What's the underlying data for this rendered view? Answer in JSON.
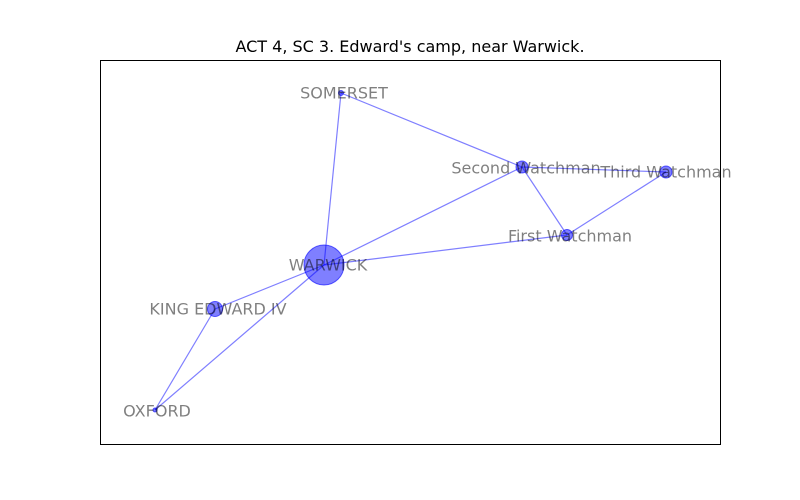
{
  "title": "ACT 4, SC 3. Edward's camp, near Warwick.",
  "colors": {
    "node": "#0000ff",
    "edge": "#0000ff",
    "label": "#000000"
  },
  "nodes": [
    {
      "id": "somerset",
      "label": "SOMERSET",
      "weight": 1
    },
    {
      "id": "second-watchman",
      "label": "Second Watchman",
      "weight": 3
    },
    {
      "id": "third-watchman",
      "label": "Third Watchman",
      "weight": 3
    },
    {
      "id": "first-watchman",
      "label": "First Watchman",
      "weight": 2.5
    },
    {
      "id": "warwick",
      "label": "WARWICK",
      "weight": 10
    },
    {
      "id": "king-edward-iv",
      "label": "KING EDWARD IV",
      "weight": 4
    },
    {
      "id": "oxford",
      "label": "OXFORD",
      "weight": 1
    }
  ],
  "edges": [
    [
      "somerset",
      "warwick"
    ],
    [
      "somerset",
      "second-watchman"
    ],
    [
      "second-watchman",
      "third-watchman"
    ],
    [
      "second-watchman",
      "first-watchman"
    ],
    [
      "second-watchman",
      "warwick"
    ],
    [
      "third-watchman",
      "first-watchman"
    ],
    [
      "first-watchman",
      "warwick"
    ],
    [
      "warwick",
      "king-edward-iv"
    ],
    [
      "warwick",
      "oxford"
    ],
    [
      "king-edward-iv",
      "oxford"
    ]
  ]
}
